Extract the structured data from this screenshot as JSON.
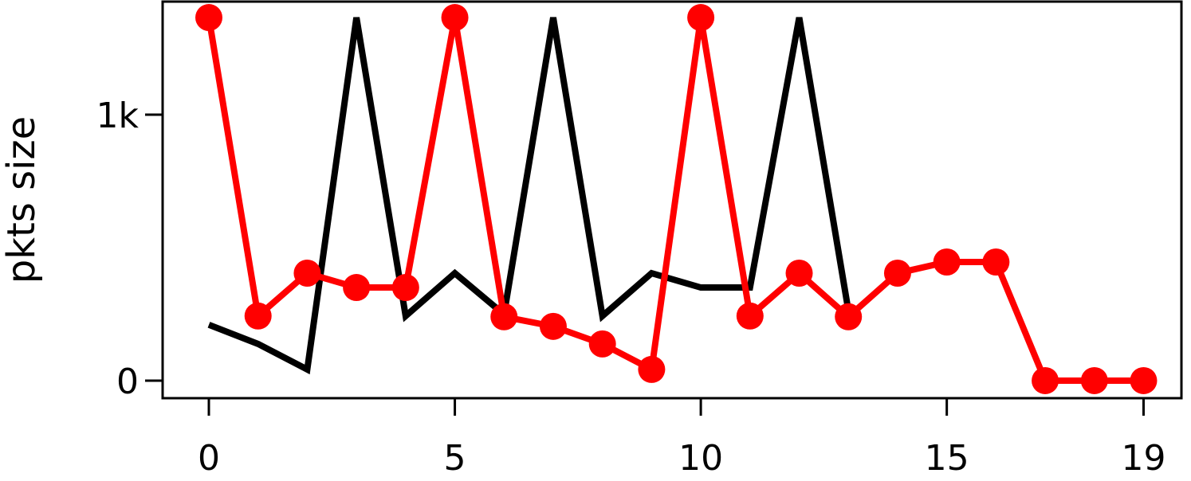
{
  "chart_data": {
    "type": "line",
    "ylabel": "pkts size",
    "x": [
      0,
      1,
      2,
      3,
      4,
      5,
      6,
      7,
      8,
      9,
      10,
      11,
      12,
      13,
      14,
      15,
      16,
      17,
      18,
      19
    ],
    "series": [
      {
        "color": "#000000",
        "marker": false,
        "values": [
          210,
          138,
          42,
          1365,
          243,
          404,
          249,
          1365,
          243,
          404,
          350,
          350,
          1365,
          263,
          null,
          null,
          null,
          null,
          null,
          null
        ]
      },
      {
        "color": "#ff0000",
        "marker": true,
        "values": [
          1365,
          243,
          404,
          350,
          350,
          1365,
          240,
          204,
          138,
          42,
          1365,
          243,
          404,
          240,
          404,
          446,
          446,
          0,
          0,
          0
        ]
      }
    ],
    "xlim": [
      -0.94,
      19.77
    ],
    "xticks": [
      0,
      5,
      10,
      15,
      19
    ],
    "ylim": [
      -66,
      1425
    ],
    "yticks": [
      0,
      {
        "value": 1000,
        "label": "1k"
      }
    ],
    "grid": false
  }
}
